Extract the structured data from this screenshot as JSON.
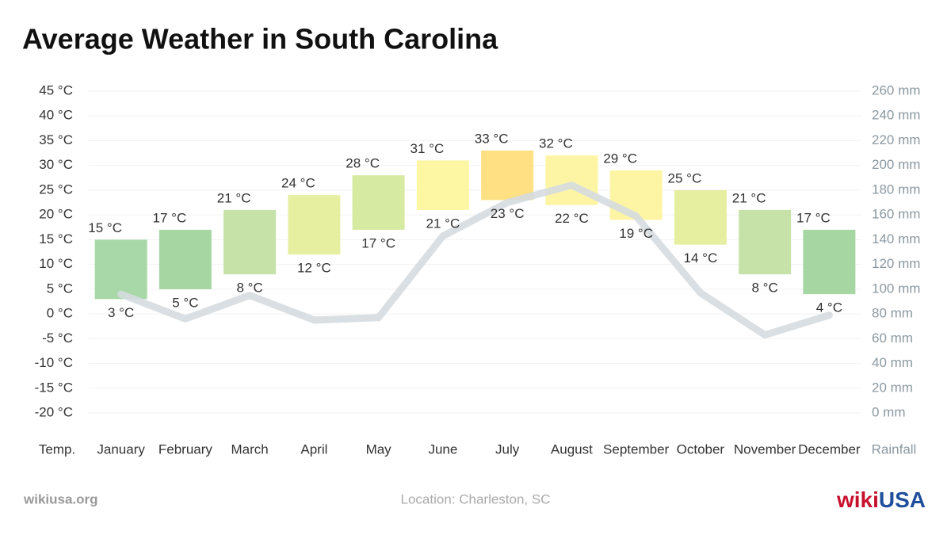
{
  "chart_data": {
    "type": "range-bar",
    "title": "Average Weather in South Carolina",
    "y_axis_label": "Temp.",
    "y2_axis_label": "Rainfall",
    "categories": [
      "January",
      "February",
      "March",
      "April",
      "May",
      "June",
      "July",
      "August",
      "September",
      "October",
      "November",
      "December"
    ],
    "series": [
      {
        "values": [
          15,
          17,
          21,
          24,
          28,
          31,
          33,
          32,
          29,
          25,
          21,
          17
        ],
        "value_labels": [
          "15 °C",
          "17 °C",
          "21 °C",
          "24 °C",
          "28 °C",
          "31 °C",
          "33 °C",
          "32 °C",
          "29 °C",
          "25 °C",
          "21 °C",
          "17 °C"
        ],
        "colors": [
          "#a8d8a8",
          "#a6d6a2",
          "#c6e2a8",
          "#e6eea0",
          "#d6eaa2",
          "#fdf6a2",
          "#ffe082",
          "#fef5a4",
          "#fef5a4",
          "#e6eea0",
          "#c6e2a8",
          "#a6d6a2"
        ]
      },
      {
        "values": [
          3,
          5,
          8,
          12,
          17,
          21,
          23,
          22,
          19,
          14,
          8,
          4
        ],
        "value_labels": [
          "3 °C",
          "5 °C",
          "8 °C",
          "12 °C",
          "17 °C",
          "21 °C",
          "23 °C",
          "22 °C",
          "19 °C",
          "14 °C",
          "8 °C",
          "4 °C"
        ]
      },
      {
        "type": "line",
        "axis": "y2",
        "color": "#d5dcdf",
        "values": [
          96,
          76,
          95,
          75,
          77,
          143,
          170,
          184,
          159,
          97,
          63,
          79
        ]
      }
    ],
    "ylim": [
      -20,
      45
    ],
    "yticks": [
      {
        "value": -20,
        "label": "-20 °C"
      },
      {
        "value": -15,
        "label": "-15 °C"
      },
      {
        "value": -10,
        "label": "-10 °C"
      },
      {
        "value": -5,
        "label": "-5 °C"
      },
      {
        "value": 0,
        "label": "0 °C"
      },
      {
        "value": 5,
        "label": "5 °C"
      },
      {
        "value": 10,
        "label": "10 °C"
      },
      {
        "value": 15,
        "label": "15 °C"
      },
      {
        "value": 20,
        "label": "20 °C"
      },
      {
        "value": 25,
        "label": "25 °C"
      },
      {
        "value": 30,
        "label": "30 °C"
      },
      {
        "value": 35,
        "label": "35 °C"
      },
      {
        "value": 40,
        "label": "40 °C"
      },
      {
        "value": 45,
        "label": "45 °C"
      }
    ],
    "y2lim": [
      0,
      260
    ],
    "y2ticks": [
      {
        "value": 0,
        "label": "0 mm"
      },
      {
        "value": 20,
        "label": "20 mm"
      },
      {
        "value": 40,
        "label": "40 mm"
      },
      {
        "value": 60,
        "label": "60 mm"
      },
      {
        "value": 80,
        "label": "80 mm"
      },
      {
        "value": 100,
        "label": "100 mm"
      },
      {
        "value": 120,
        "label": "120 mm"
      },
      {
        "value": 140,
        "label": "140 mm"
      },
      {
        "value": 160,
        "label": "160 mm"
      },
      {
        "value": 180,
        "label": "180 mm"
      },
      {
        "value": 200,
        "label": "200 mm"
      },
      {
        "value": 220,
        "label": "220 mm"
      },
      {
        "value": 240,
        "label": "240 mm"
      },
      {
        "value": 260,
        "label": "260 mm"
      }
    ],
    "grid": true
  },
  "footer": {
    "site": "wikiusa.org",
    "location": "Location: Charleston, SC",
    "logo_wiki": "wiki",
    "logo_usa": "USA"
  }
}
